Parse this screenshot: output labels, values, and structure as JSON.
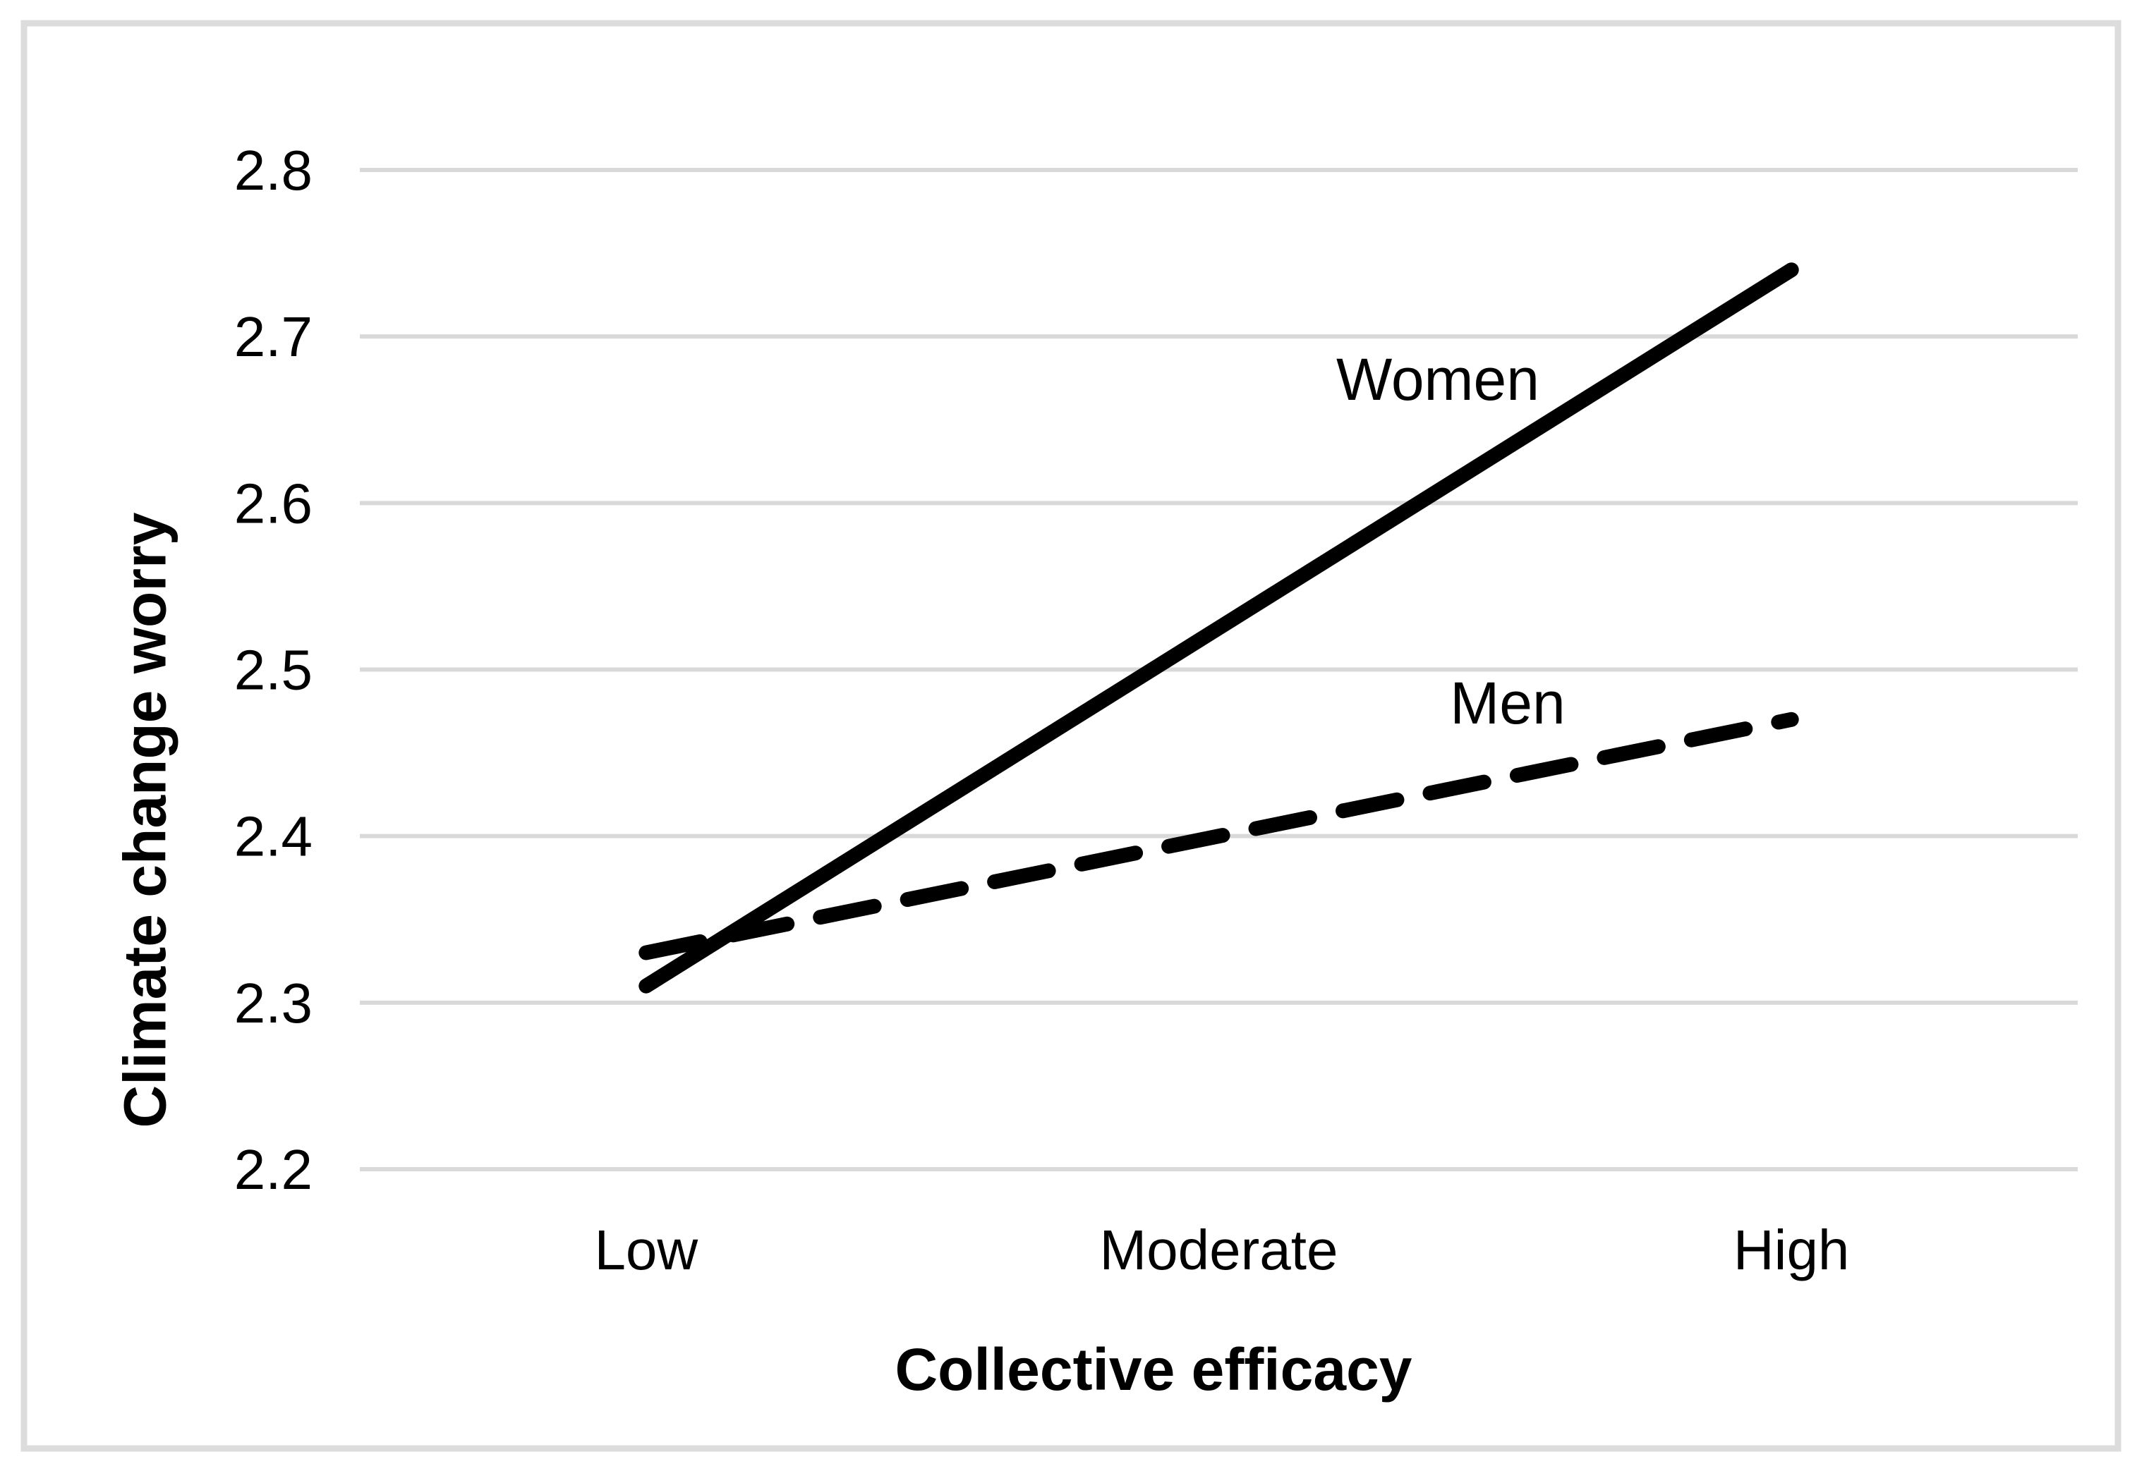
{
  "chart_data": {
    "type": "line",
    "title": "",
    "xlabel": "Collective efficacy",
    "ylabel": "Climate change worry",
    "categories": [
      "Low",
      "Moderate",
      "High"
    ],
    "series": [
      {
        "name": "Women",
        "line_style": "solid",
        "color": "#000000",
        "values": [
          2.31,
          2.525,
          2.74
        ]
      },
      {
        "name": "Men",
        "line_style": "dashed",
        "color": "#000000",
        "values": [
          2.33,
          2.4,
          2.47
        ]
      }
    ],
    "ylim": [
      2.2,
      2.8
    ],
    "ytick_step": 0.1,
    "ytick_labels": [
      "2.8",
      "2.7",
      "2.6",
      "2.5",
      "2.4",
      "2.3",
      "2.2"
    ],
    "grid": true,
    "gridline_color": "#d9d9d9",
    "border_color": "#dcdcdc",
    "axis_text_color": "#000000",
    "legend_position": "inline-labels"
  }
}
